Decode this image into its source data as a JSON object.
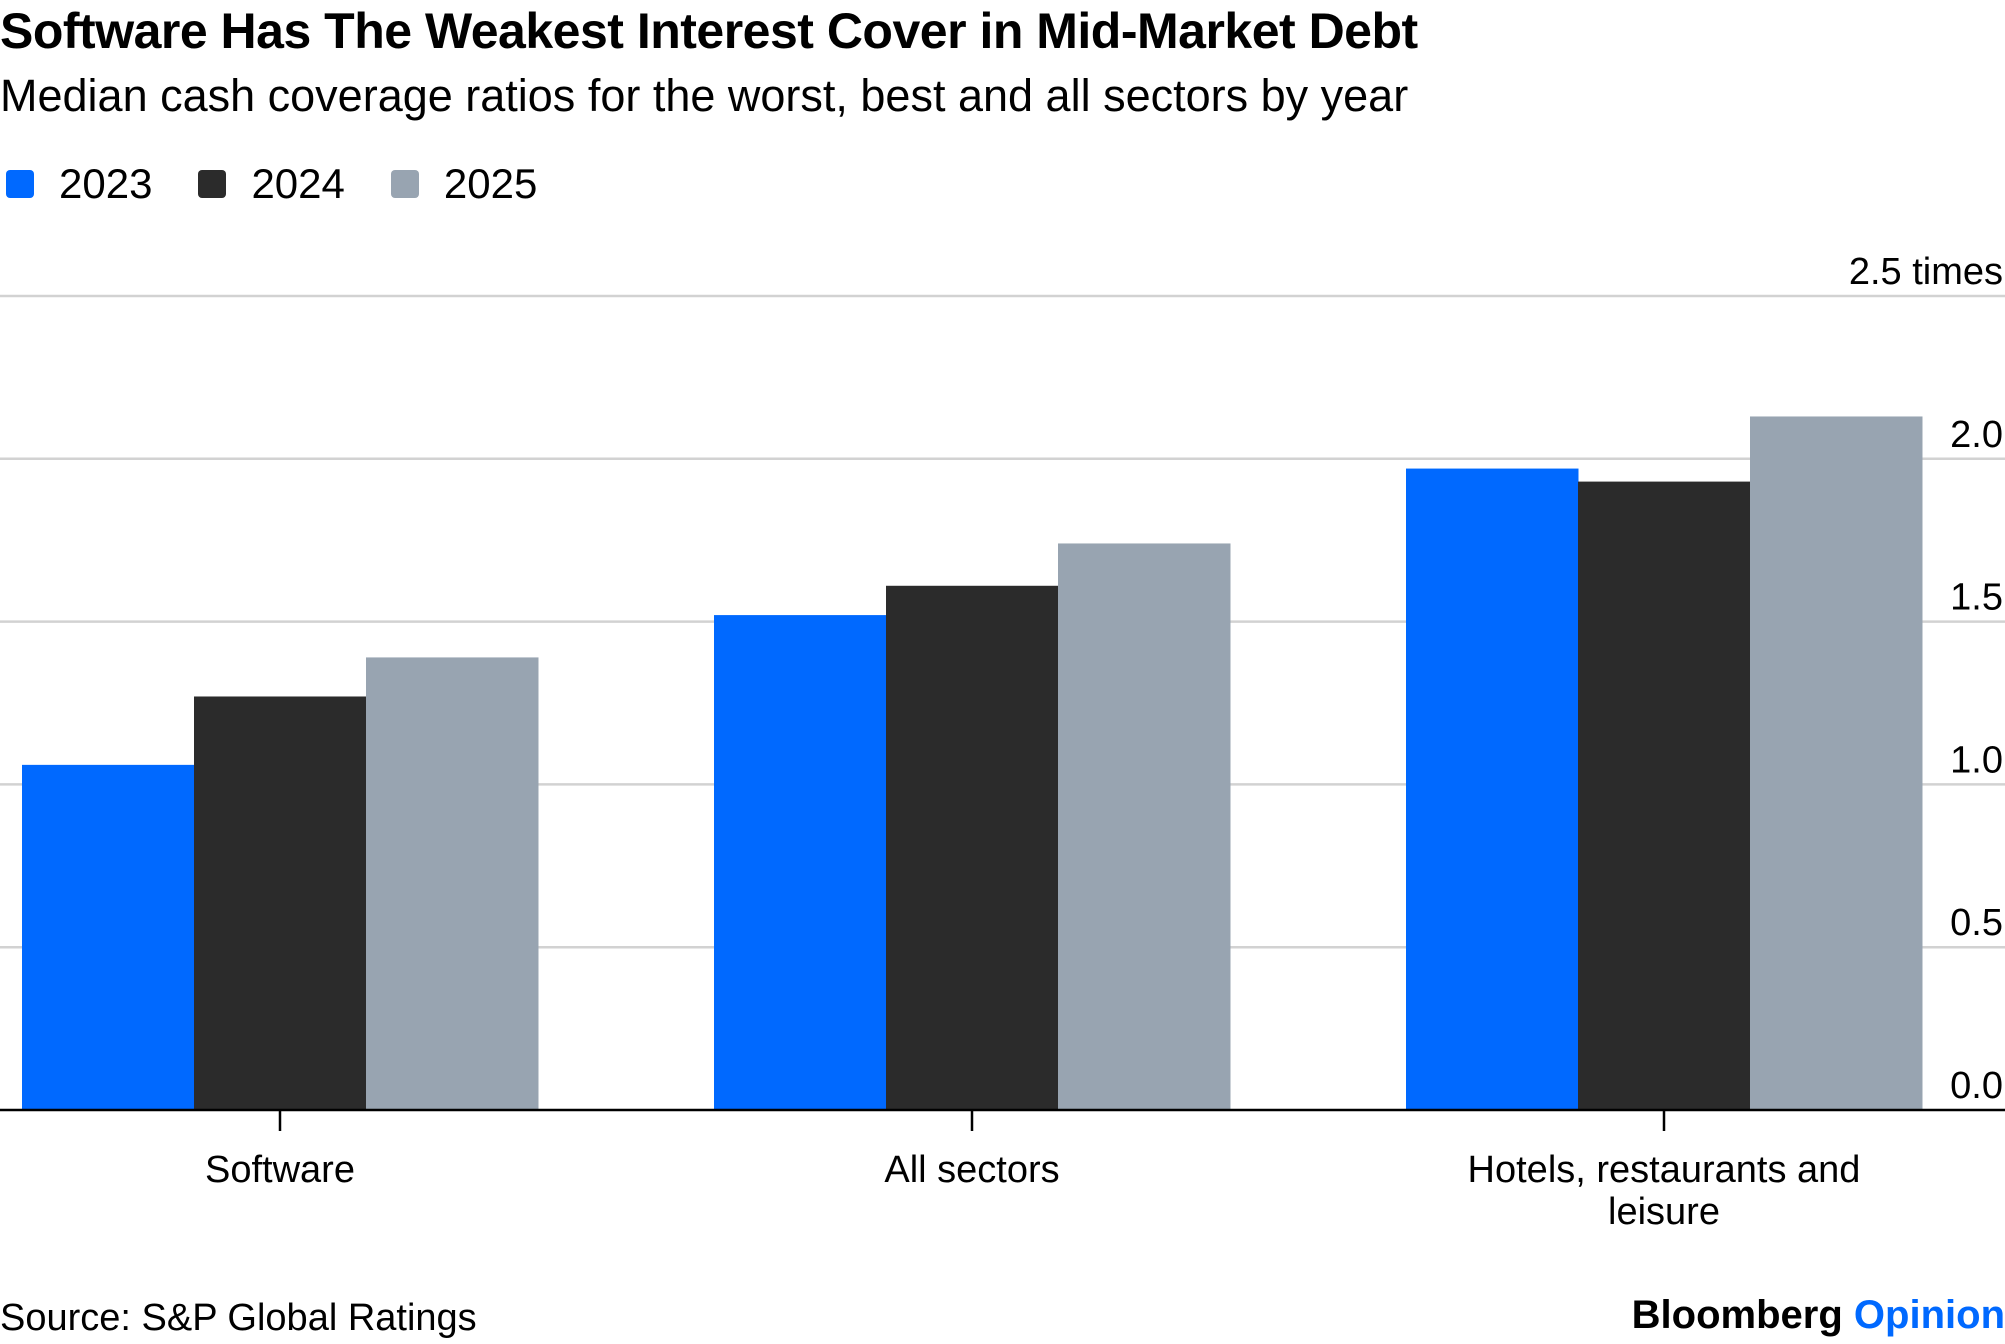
{
  "header": {
    "title": "Software Has The Weakest Interest Cover in Mid-Market Debt",
    "subtitle": "Median cash coverage ratios for the worst, best and all sectors by year"
  },
  "legend": [
    {
      "label": "2023",
      "color": "#0069ff"
    },
    {
      "label": "2024",
      "color": "#2b2b2b"
    },
    {
      "label": "2025",
      "color": "#98a4b1"
    }
  ],
  "footer": {
    "source": "Source: S&P Global Ratings",
    "brand_primary": "Bloomberg",
    "brand_secondary": "Opinion"
  },
  "chart_data": {
    "type": "bar",
    "title": "Software Has The Weakest Interest Cover in Mid-Market Debt",
    "subtitle": "Median cash coverage ratios for the worst, best and all sectors by year",
    "categories": [
      "Software",
      "All sectors",
      "Hotels, restaurants and leisure"
    ],
    "category_lines": [
      [
        "Software"
      ],
      [
        "All sectors"
      ],
      [
        "Hotels, restaurants and",
        "leisure"
      ]
    ],
    "series": [
      {
        "name": "2023",
        "color": "#0069ff",
        "values": [
          1.06,
          1.52,
          1.97
        ]
      },
      {
        "name": "2024",
        "color": "#2b2b2b",
        "values": [
          1.27,
          1.61,
          1.93
        ]
      },
      {
        "name": "2025",
        "color": "#98a4b1",
        "values": [
          1.39,
          1.74,
          2.13
        ]
      }
    ],
    "ylim": [
      0,
      2.5
    ],
    "yticks": [
      0,
      0.5,
      1.0,
      1.5,
      2.0,
      2.5
    ],
    "ytick_labels": [
      "0.0",
      "0.5",
      "1.0",
      "1.5",
      "2.0",
      "2.5 times"
    ],
    "y_axis_side": "right",
    "xlabel": "",
    "ylabel": "",
    "grid": true,
    "legend_position": "top-left"
  }
}
